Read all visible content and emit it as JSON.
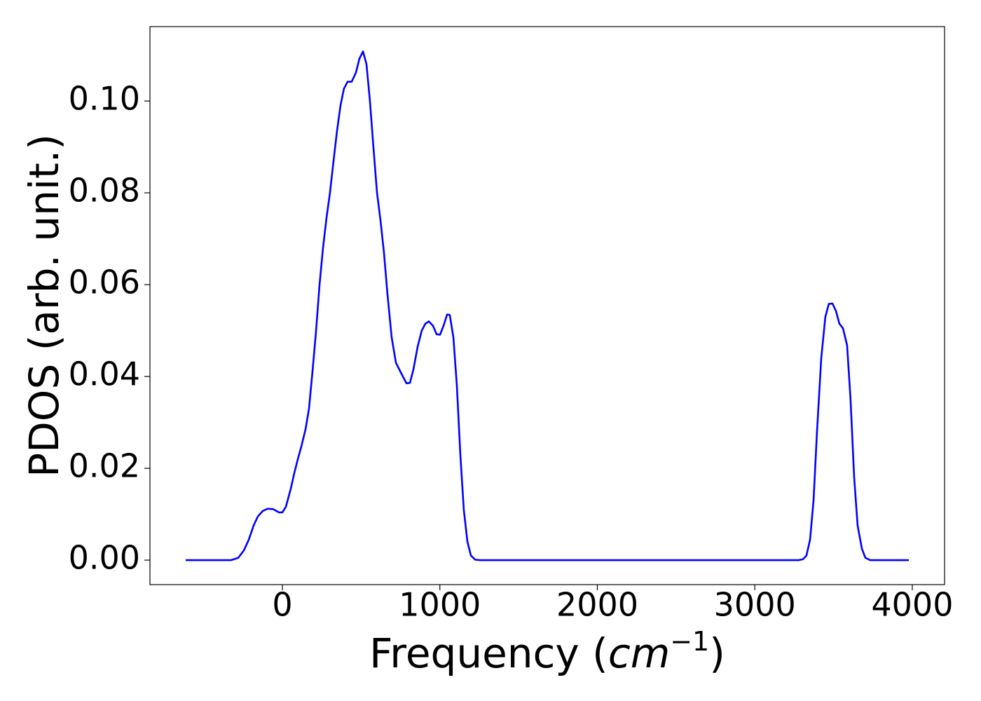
{
  "chart_data": {
    "type": "line",
    "y_label": "PDOS (arb. unit.)",
    "x_label": [
      "Frequency (",
      "cm",
      "−1",
      ")"
    ],
    "color": "#0000ff",
    "x": [
      -614,
      -325,
      -280,
      -245,
      -214,
      -182,
      -156,
      -125,
      -93,
      -58,
      -22,
      0,
      22,
      53,
      76,
      98,
      120,
      147,
      169,
      191,
      214,
      236,
      258,
      280,
      302,
      325,
      347,
      369,
      391,
      414,
      440,
      467,
      489,
      512,
      534,
      556,
      578,
      601,
      623,
      645,
      667,
      694,
      721,
      743,
      765,
      788,
      810,
      832,
      859,
      885,
      908,
      930,
      957,
      979,
      1001,
      1023,
      1046,
      1063,
      1086,
      1108,
      1130,
      1152,
      1175,
      1197,
      1224,
      1255,
      3279,
      3306,
      3328,
      3351,
      3373,
      3395,
      3422,
      3448,
      3470,
      3493,
      3515,
      3537,
      3560,
      3586,
      3608,
      3631,
      3653,
      3680,
      3702,
      3733,
      3978
    ],
    "values": [
      0,
      0,
      0.0005,
      0.0021,
      0.0044,
      0.0076,
      0.0095,
      0.0107,
      0.0112,
      0.0111,
      0.0104,
      0.0104,
      0.0116,
      0.0155,
      0.019,
      0.022,
      0.0247,
      0.0285,
      0.033,
      0.041,
      0.05,
      0.06,
      0.068,
      0.0745,
      0.08,
      0.087,
      0.0935,
      0.099,
      0.1027,
      0.1042,
      0.1042,
      0.1062,
      0.1092,
      0.1108,
      0.108,
      0.1,
      0.09,
      0.08,
      0.074,
      0.067,
      0.058,
      0.0485,
      0.043,
      0.0415,
      0.04,
      0.0385,
      0.0386,
      0.0415,
      0.0465,
      0.05,
      0.0515,
      0.052,
      0.051,
      0.0492,
      0.0491,
      0.051,
      0.0535,
      0.0534,
      0.0485,
      0.038,
      0.023,
      0.011,
      0.004,
      0.001,
      0.0001,
      0,
      0,
      0.0002,
      0.001,
      0.0045,
      0.013,
      0.028,
      0.044,
      0.053,
      0.0558,
      0.0559,
      0.0543,
      0.0515,
      0.0505,
      0.0468,
      0.035,
      0.018,
      0.0075,
      0.0025,
      0.0005,
      0,
      0
    ],
    "xlim": [
      -841,
      4205
    ],
    "ylim": [
      -0.00534,
      0.1162
    ],
    "xticks": [
      0,
      1000,
      2000,
      3000,
      4000
    ],
    "yticks": [
      {
        "value": 0,
        "label": "0.00"
      },
      {
        "value": 0.02,
        "label": "0.02"
      },
      {
        "value": 0.04,
        "label": "0.04"
      },
      {
        "value": 0.06,
        "label": "0.06"
      },
      {
        "value": 0.08,
        "label": "0.08"
      },
      {
        "value": 0.1,
        "label": "0.10"
      }
    ]
  }
}
